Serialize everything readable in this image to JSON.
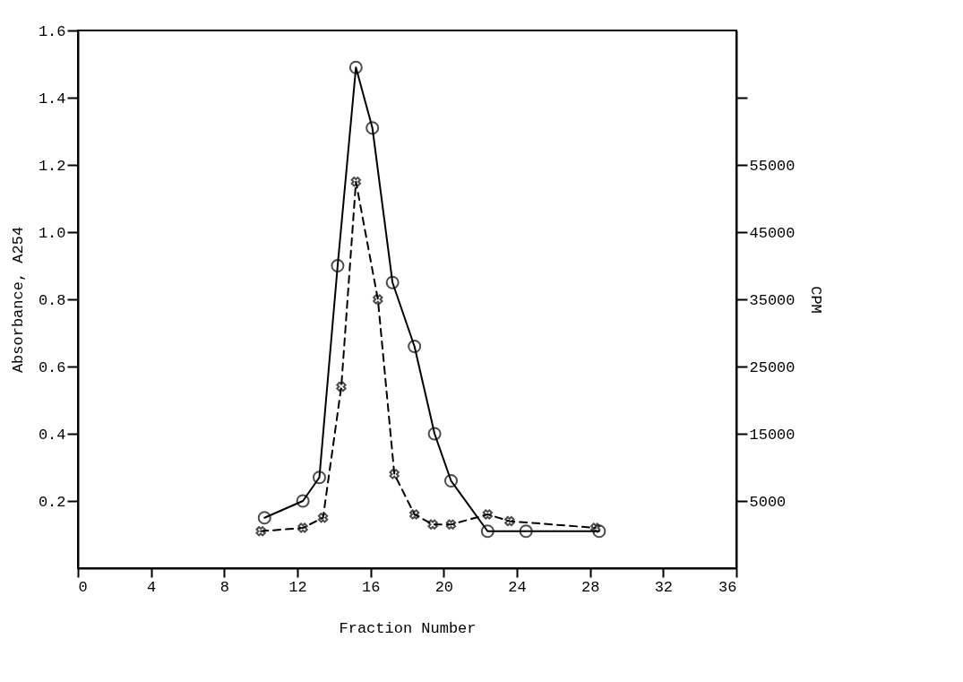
{
  "chart_data": {
    "type": "line",
    "xlabel": "Fraction Number",
    "ylabel": "Absorbance, A254",
    "y2label": "CPM",
    "xlim": [
      0,
      36
    ],
    "xticks": [
      0,
      4,
      8,
      12,
      16,
      20,
      24,
      28,
      32,
      36
    ],
    "ylim": [
      0,
      1.6
    ],
    "yticks": [
      0.2,
      0.4,
      0.6,
      0.8,
      {
        "value": 1,
        "label": "1.0"
      },
      1.2,
      1.4,
      1.6
    ],
    "y2lim": [
      -5000,
      75000
    ],
    "y2ticks": [
      5000,
      15000,
      25000,
      35000,
      45000,
      55000,
      {
        "value": 65000,
        "label": null
      }
    ],
    "grid": false,
    "series": [
      {
        "color": "#000000",
        "marker": "circle",
        "line_style": "solid",
        "x": [
          10.2,
          12.3,
          13.2,
          14.2,
          15.2,
          16.1,
          17.2,
          18.4,
          19.5,
          20.4,
          22.4,
          24.5,
          28.5
        ],
        "values": [
          0.15,
          0.2,
          0.27,
          0.9,
          1.49,
          1.31,
          0.85,
          0.66,
          0.4,
          0.26,
          0.11,
          0.11,
          0.11
        ]
      },
      {
        "color": "#000000",
        "marker": "cross",
        "line_style": "dashed",
        "axis": "y2",
        "x": [
          10.0,
          12.3,
          13.4,
          14.4,
          15.2,
          16.4,
          17.3,
          18.4,
          19.4,
          20.4,
          22.4,
          23.6,
          28.3
        ],
        "values": [
          500,
          1000,
          2500,
          22000,
          52500,
          35000,
          9000,
          3000,
          1500,
          1500,
          3000,
          2000,
          1000
        ]
      }
    ]
  }
}
